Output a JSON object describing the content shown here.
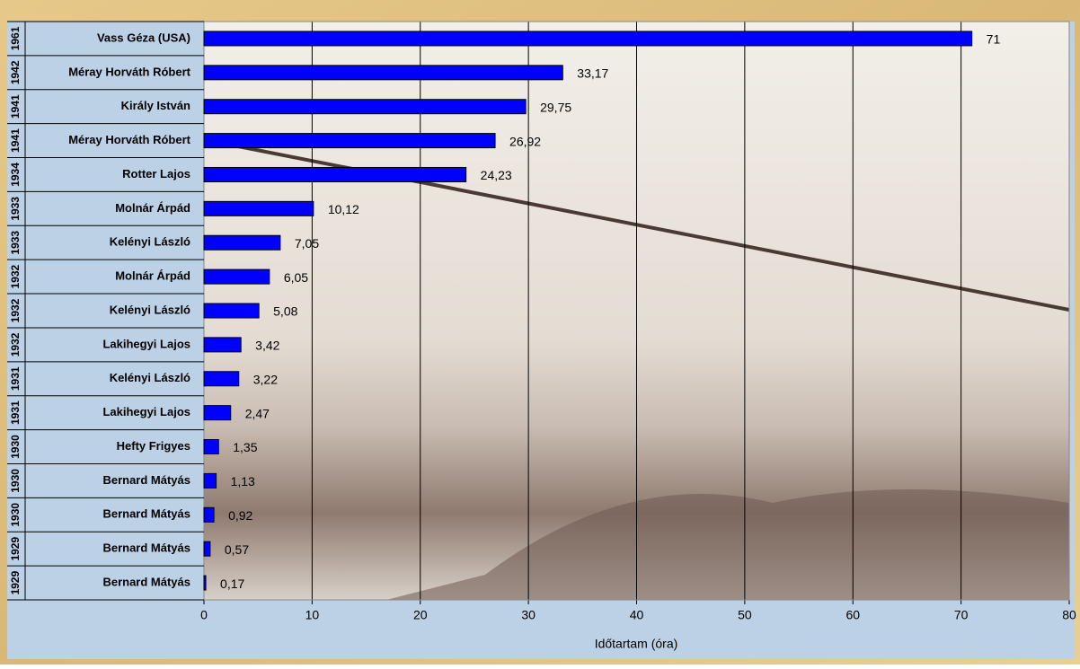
{
  "chart_data": {
    "type": "bar",
    "x_label": "Időtartam (óra)",
    "categories": [
      "Vass Géza (USA)",
      "Méray Horváth Róbert",
      "Király István",
      "Méray Horváth Róbert",
      "Rotter Lajos",
      "Molnár Árpád",
      "Kelényi László",
      "Molnár Árpád",
      "Kelényi László",
      "Lakihegyi Lajos",
      "Kelényi László",
      "Lakihegyi Lajos",
      "Hefty Frigyes",
      "Bernard Mátyás",
      "Bernard Mátyás",
      "Bernard Mátyás",
      "Bernard Mátyás"
    ],
    "years": [
      "1961",
      "1942",
      "1941",
      "1941",
      "1934",
      "1933",
      "1933",
      "1932",
      "1932",
      "1932",
      "1931",
      "1931",
      "1930",
      "1930",
      "1930",
      "1929",
      "1929"
    ],
    "values": [
      71,
      33.17,
      29.75,
      26.92,
      24.23,
      10.12,
      7.05,
      6.05,
      5.08,
      3.42,
      3.22,
      2.47,
      1.35,
      1.13,
      0.92,
      0.57,
      0.17
    ],
    "value_labels": [
      "71",
      "33,17",
      "29,75",
      "26,92",
      "24,23",
      "10,12",
      "7,05",
      "6,05",
      "5,08",
      "3,42",
      "3,22",
      "2,47",
      "1,35",
      "1,13",
      "0,92",
      "0,57",
      "0,17"
    ],
    "color": "#0000ff",
    "xlim": [
      0,
      80
    ],
    "xticks": [
      0,
      10,
      20,
      30,
      40,
      50,
      60,
      70,
      80
    ],
    "grid": true
  }
}
